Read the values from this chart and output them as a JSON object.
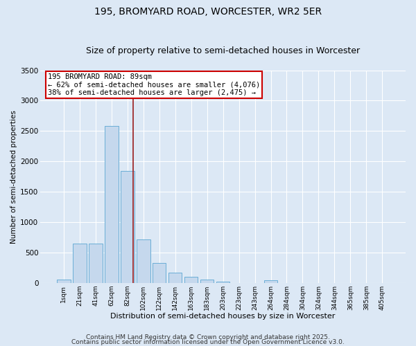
{
  "title": "195, BROMYARD ROAD, WORCESTER, WR2 5ER",
  "subtitle": "Size of property relative to semi-detached houses in Worcester",
  "xlabel": "Distribution of semi-detached houses by size in Worcester",
  "ylabel": "Number of semi-detached properties",
  "categories": [
    "1sqm",
    "21sqm",
    "41sqm",
    "62sqm",
    "82sqm",
    "102sqm",
    "122sqm",
    "142sqm",
    "163sqm",
    "183sqm",
    "203sqm",
    "223sqm",
    "243sqm",
    "264sqm",
    "284sqm",
    "304sqm",
    "324sqm",
    "344sqm",
    "365sqm",
    "385sqm",
    "405sqm"
  ],
  "bar_heights": [
    55,
    650,
    650,
    2580,
    1850,
    720,
    330,
    175,
    100,
    60,
    30,
    0,
    0,
    50,
    0,
    0,
    0,
    0,
    0,
    0,
    0
  ],
  "bar_color": "#c5d8ed",
  "bar_edge_color": "#6aaed6",
  "vline_pos": 4.35,
  "vline_color": "#9b1c1c",
  "annotation_text": "195 BROMYARD ROAD: 89sqm\n← 62% of semi-detached houses are smaller (4,076)\n38% of semi-detached houses are larger (2,475) →",
  "annotation_box_color": "#ffffff",
  "annotation_box_edge": "#cc0000",
  "ylim": [
    0,
    3500
  ],
  "yticks": [
    0,
    500,
    1000,
    1500,
    2000,
    2500,
    3000,
    3500
  ],
  "background_color": "#dce8f5",
  "axes_background": "#dce8f5",
  "grid_color": "#ffffff",
  "footer1": "Contains HM Land Registry data © Crown copyright and database right 2025.",
  "footer2": "Contains public sector information licensed under the Open Government Licence v3.0.",
  "title_fontsize": 10,
  "subtitle_fontsize": 9,
  "annotation_fontsize": 7.5,
  "footer_fontsize": 6.5
}
